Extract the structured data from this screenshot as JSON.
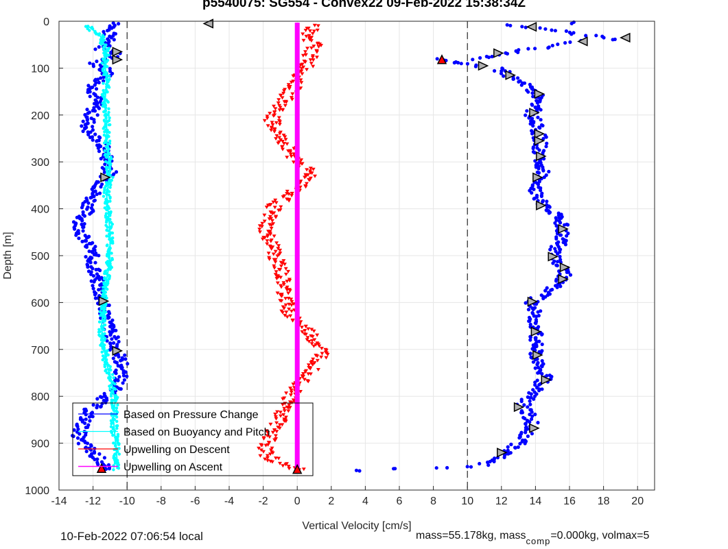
{
  "title": "p5540075: SG554 - Convex22 09-Feb-2022 15:38:34Z",
  "footer": {
    "local_time": "10-Feb-2022 07:06:54 local",
    "mass_text": "mass=55.178kg, mass",
    "comp_sub": "comp",
    "comp_text": "=0.000kg, volmax=5"
  },
  "chart_data": {
    "type": "scatter",
    "xlabel": "Vertical Velocity [cm/s]",
    "ylabel": "Depth [m]",
    "xlim": [
      -14,
      21
    ],
    "ylim": [
      0,
      1000
    ],
    "y_reversed": true,
    "xticks": [
      -14,
      -12,
      -10,
      -8,
      -6,
      -4,
      -2,
      0,
      2,
      4,
      6,
      8,
      10,
      12,
      14,
      16,
      18,
      20
    ],
    "yticks": [
      0,
      100,
      200,
      300,
      400,
      500,
      600,
      700,
      800,
      900,
      1000
    ],
    "grid": true,
    "reference_lines": {
      "dashed_x": [
        -10,
        10
      ]
    },
    "legend": {
      "placement": "bottom-left",
      "entries": [
        {
          "label": "Based on Pressure Change",
          "color": "#0000ff"
        },
        {
          "label": "Based on Buoyancy and Pitch",
          "color": "#00ffff"
        },
        {
          "label": "Upwelling on Descent",
          "color": "#ff0000"
        },
        {
          "label": "Upwelling on Ascent",
          "color": "#ff00ff"
        }
      ]
    },
    "series": [
      {
        "name": "Based on Pressure Change (descent)",
        "color": "#0000ff",
        "points": [
          [
            -10.5,
            5
          ],
          [
            -11.2,
            20
          ],
          [
            -10.8,
            40
          ],
          [
            -11.5,
            60
          ],
          [
            -10.6,
            70
          ],
          [
            -11.8,
            90
          ],
          [
            -11.0,
            110
          ],
          [
            -12.0,
            140
          ],
          [
            -11.8,
            170
          ],
          [
            -12.1,
            200
          ],
          [
            -12.4,
            230
          ],
          [
            -11.5,
            260
          ],
          [
            -11.2,
            290
          ],
          [
            -11.0,
            320
          ],
          [
            -11.3,
            340
          ],
          [
            -12.0,
            370
          ],
          [
            -12.3,
            400
          ],
          [
            -12.8,
            430
          ],
          [
            -12.6,
            460
          ],
          [
            -12.1,
            490
          ],
          [
            -12.0,
            520
          ],
          [
            -11.8,
            550
          ],
          [
            -11.6,
            580
          ],
          [
            -11.5,
            600
          ],
          [
            -11.2,
            630
          ],
          [
            -11.0,
            660
          ],
          [
            -10.8,
            690
          ],
          [
            -10.5,
            710
          ],
          [
            -10.3,
            740
          ],
          [
            -10.4,
            760
          ],
          [
            -10.8,
            790
          ],
          [
            -11.5,
            810
          ],
          [
            -12.2,
            830
          ],
          [
            -12.6,
            860
          ],
          [
            -12.9,
            890
          ],
          [
            -12.0,
            920
          ],
          [
            -11.5,
            940
          ],
          [
            -11.4,
            955
          ]
        ]
      },
      {
        "name": "Based on Pressure Change (ascent)",
        "color": "#0000ff",
        "points": [
          [
            3.5,
            958
          ],
          [
            6.0,
            956
          ],
          [
            8.5,
            954
          ],
          [
            10.0,
            950
          ],
          [
            11.0,
            945
          ],
          [
            11.8,
            930
          ],
          [
            12.5,
            915
          ],
          [
            13.0,
            900
          ],
          [
            13.5,
            880
          ],
          [
            13.8,
            860
          ],
          [
            13.6,
            840
          ],
          [
            13.2,
            820
          ],
          [
            13.8,
            800
          ],
          [
            14.2,
            780
          ],
          [
            14.6,
            760
          ],
          [
            14.3,
            740
          ],
          [
            14.0,
            710
          ],
          [
            14.0,
            680
          ],
          [
            14.0,
            650
          ],
          [
            13.9,
            620
          ],
          [
            13.8,
            600
          ],
          [
            14.5,
            580
          ],
          [
            15.3,
            560
          ],
          [
            15.8,
            540
          ],
          [
            15.5,
            520
          ],
          [
            15.0,
            500
          ],
          [
            15.5,
            470
          ],
          [
            15.6,
            440
          ],
          [
            15.2,
            410
          ],
          [
            14.4,
            390
          ],
          [
            14.0,
            370
          ],
          [
            14.1,
            340
          ],
          [
            14.5,
            320
          ],
          [
            14.2,
            290
          ],
          [
            14.3,
            260
          ],
          [
            14.2,
            240
          ],
          [
            14.0,
            220
          ],
          [
            13.8,
            200
          ],
          [
            14.0,
            180
          ],
          [
            14.2,
            160
          ],
          [
            13.5,
            140
          ],
          [
            12.6,
            120
          ],
          [
            11.8,
            100
          ],
          [
            10.5,
            95
          ],
          [
            9.0,
            85
          ],
          [
            8.5,
            82
          ],
          [
            10.5,
            80
          ],
          [
            12.0,
            70
          ],
          [
            14.5,
            55
          ],
          [
            16.8,
            42
          ],
          [
            18.5,
            38
          ],
          [
            14.5,
            15
          ],
          [
            12.5,
            8
          ],
          [
            16.0,
            3
          ]
        ]
      },
      {
        "name": "Based on Buoyancy and Pitch",
        "color": "#00ffff",
        "points": [
          [
            -12.3,
            10
          ],
          [
            -11.6,
            30
          ],
          [
            -11.2,
            60
          ],
          [
            -11.3,
            90
          ],
          [
            -11.2,
            130
          ],
          [
            -11.3,
            170
          ],
          [
            -11.2,
            210
          ],
          [
            -11.2,
            250
          ],
          [
            -11.1,
            290
          ],
          [
            -11.0,
            330
          ],
          [
            -11.2,
            370
          ],
          [
            -11.1,
            410
          ],
          [
            -11.0,
            450
          ],
          [
            -11.0,
            490
          ],
          [
            -11.1,
            530
          ],
          [
            -11.3,
            570
          ],
          [
            -11.4,
            610
          ],
          [
            -11.5,
            650
          ],
          [
            -11.4,
            690
          ],
          [
            -11.2,
            730
          ],
          [
            -10.9,
            770
          ],
          [
            -10.7,
            810
          ],
          [
            -10.8,
            850
          ],
          [
            -10.7,
            890
          ],
          [
            -10.6,
            930
          ],
          [
            -10.6,
            955
          ]
        ]
      },
      {
        "name": "Upwelling on Descent",
        "color": "#ff0000",
        "points": [
          [
            1.0,
            10
          ],
          [
            0.5,
            30
          ],
          [
            1.0,
            50
          ],
          [
            0.8,
            70
          ],
          [
            0.6,
            90
          ],
          [
            0.3,
            110
          ],
          [
            0.0,
            130
          ],
          [
            -0.4,
            150
          ],
          [
            -0.8,
            170
          ],
          [
            -1.2,
            190
          ],
          [
            -1.5,
            210
          ],
          [
            -1.3,
            230
          ],
          [
            -1.0,
            250
          ],
          [
            -0.5,
            270
          ],
          [
            -0.2,
            290
          ],
          [
            0.5,
            310
          ],
          [
            0.8,
            330
          ],
          [
            0.3,
            350
          ],
          [
            -0.5,
            370
          ],
          [
            -1.2,
            390
          ],
          [
            -1.6,
            410
          ],
          [
            -1.8,
            430
          ],
          [
            -1.9,
            450
          ],
          [
            -1.6,
            470
          ],
          [
            -1.4,
            490
          ],
          [
            -1.2,
            510
          ],
          [
            -1.0,
            530
          ],
          [
            -0.9,
            550
          ],
          [
            -0.8,
            570
          ],
          [
            -0.7,
            590
          ],
          [
            -0.6,
            610
          ],
          [
            -0.3,
            630
          ],
          [
            0.3,
            650
          ],
          [
            0.8,
            670
          ],
          [
            1.2,
            690
          ],
          [
            1.5,
            710
          ],
          [
            1.2,
            730
          ],
          [
            0.8,
            750
          ],
          [
            0.3,
            770
          ],
          [
            -0.2,
            790
          ],
          [
            -0.5,
            810
          ],
          [
            -0.8,
            830
          ],
          [
            -1.0,
            850
          ],
          [
            -1.3,
            870
          ],
          [
            -1.6,
            890
          ],
          [
            -1.9,
            910
          ],
          [
            -1.7,
            930
          ],
          [
            -1.0,
            945
          ],
          [
            0.2,
            955
          ]
        ]
      },
      {
        "name": "Upwelling on Ascent",
        "color": "#ff00ff",
        "points": [
          [
            0,
            3
          ],
          [
            0,
            955
          ]
        ]
      }
    ],
    "markers": [
      {
        "type": "triangle-left",
        "points": [
          [
            -5.2,
            5
          ],
          [
            13.8,
            12
          ],
          [
            16.8,
            43
          ],
          [
            19.3,
            35
          ]
        ]
      },
      {
        "type": "triangle-right",
        "points": [
          [
            -10.6,
            65
          ],
          [
            -10.6,
            82
          ],
          [
            11.8,
            68
          ],
          [
            10.9,
            95
          ],
          [
            12.5,
            115
          ],
          [
            14.2,
            155
          ],
          [
            13.9,
            195
          ],
          [
            14.2,
            240
          ],
          [
            14.2,
            255
          ],
          [
            14.3,
            288
          ],
          [
            14.1,
            333
          ],
          [
            14.3,
            393
          ],
          [
            15.6,
            443
          ],
          [
            15.0,
            502
          ],
          [
            15.7,
            525
          ],
          [
            15.6,
            550
          ],
          [
            13.8,
            598
          ],
          [
            14.0,
            662
          ],
          [
            14.1,
            712
          ],
          [
            14.6,
            765
          ],
          [
            13.0,
            823
          ],
          [
            13.9,
            868
          ],
          [
            12.0,
            920
          ],
          [
            -11.3,
            333
          ],
          [
            -11.4,
            597
          ],
          [
            -10.6,
            703
          ]
        ]
      },
      {
        "type": "triangle-up",
        "color": "#ff0000",
        "points": [
          [
            -11.5,
            955
          ],
          [
            0,
            957
          ],
          [
            8.5,
            83
          ]
        ]
      }
    ]
  }
}
